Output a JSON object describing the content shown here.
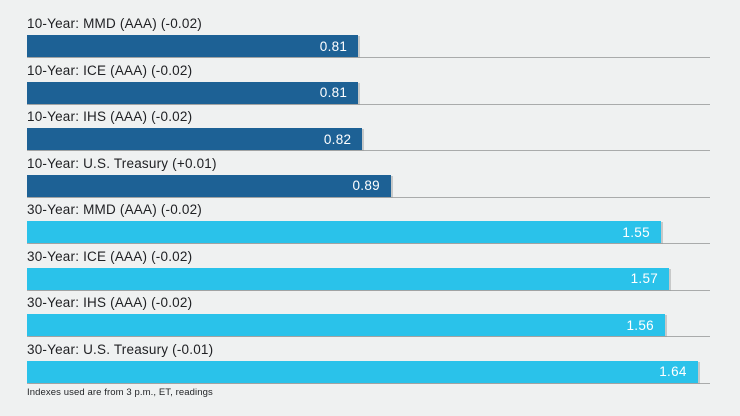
{
  "page": {
    "background": "#eff1f1"
  },
  "footer": {
    "note": "Indexes used are from 3 p.m., ET, readings"
  },
  "chart_data": {
    "type": "bar",
    "orientation": "horizontal",
    "title": "",
    "xlabel": "",
    "ylabel": "",
    "xlim": [
      0,
      1.67
    ],
    "grid": false,
    "legend_position": "none",
    "baseline_color": "#a9abab",
    "category_label_color": "#202124",
    "value_label_color": "#ffffff",
    "colors": {
      "ten_year": "#1d6195",
      "thirty_year": "#2ac2ea"
    },
    "categories": [
      "10-Year: MMD (AAA) (-0.02)",
      "10-Year: ICE (AAA) (-0.02)",
      "10-Year: IHS (AAA) (-0.02)",
      "10-Year: U.S. Treasury (+0.01)",
      "30-Year: MMD (AAA) (-0.02)",
      "30-Year: ICE (AAA) (-0.02)",
      "30-Year: IHS (AAA) (-0.02)",
      "30-Year: U.S. Treasury (-0.01)"
    ],
    "values": [
      0.81,
      0.81,
      0.82,
      0.89,
      1.55,
      1.57,
      1.56,
      1.64
    ],
    "bars": [
      {
        "category": "10-Year: MMD (AAA) (-0.02)",
        "value": 0.81,
        "display": "0.81",
        "group": "ten_year"
      },
      {
        "category": "10-Year: ICE (AAA) (-0.02)",
        "value": 0.81,
        "display": "0.81",
        "group": "ten_year"
      },
      {
        "category": "10-Year: IHS (AAA) (-0.02)",
        "value": 0.82,
        "display": "0.82",
        "group": "ten_year"
      },
      {
        "category": "10-Year: U.S. Treasury (+0.01)",
        "value": 0.89,
        "display": "0.89",
        "group": "ten_year"
      },
      {
        "category": "30-Year: MMD (AAA) (-0.02)",
        "value": 1.55,
        "display": "1.55",
        "group": "thirty_year"
      },
      {
        "category": "30-Year: ICE (AAA) (-0.02)",
        "value": 1.57,
        "display": "1.57",
        "group": "thirty_year"
      },
      {
        "category": "30-Year: IHS (AAA) (-0.02)",
        "value": 1.56,
        "display": "1.56",
        "group": "thirty_year"
      },
      {
        "category": "30-Year: U.S. Treasury (-0.01)",
        "value": 1.64,
        "display": "1.64",
        "group": "thirty_year"
      }
    ]
  }
}
